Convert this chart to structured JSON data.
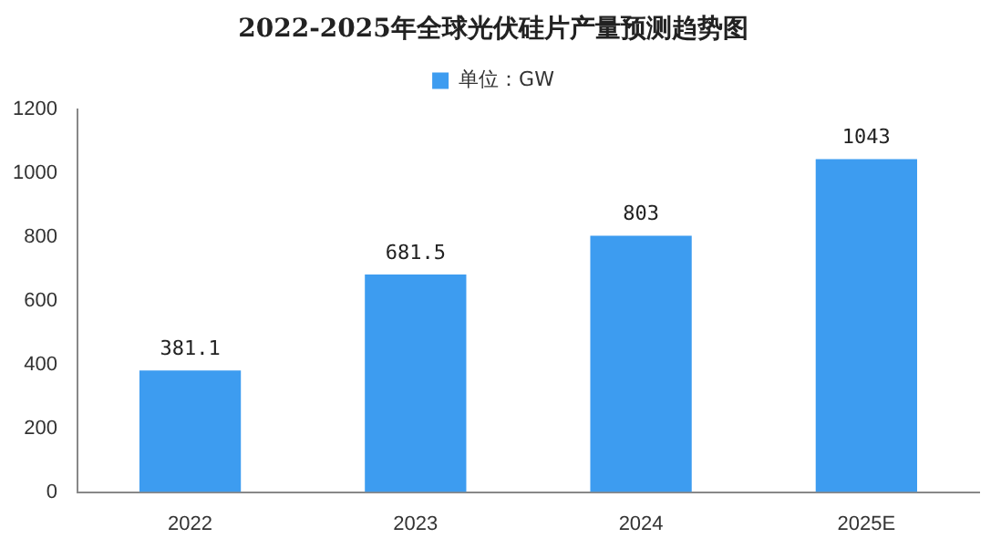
{
  "chart_data": {
    "type": "bar",
    "title": "2022-2025年全球光伏硅片产量预测趋势图",
    "categories": [
      "2022",
      "2023",
      "2024",
      "2025E"
    ],
    "series": [
      {
        "name": "单位：GW",
        "color": "#3d9cf0",
        "values": [
          381.1,
          681.5,
          803,
          1043
        ]
      }
    ],
    "ylim": [
      0,
      1200
    ],
    "yticks": [
      0,
      200,
      400,
      600,
      800,
      1000,
      1200
    ],
    "grid": false,
    "legend": "top",
    "data_labels": true
  }
}
